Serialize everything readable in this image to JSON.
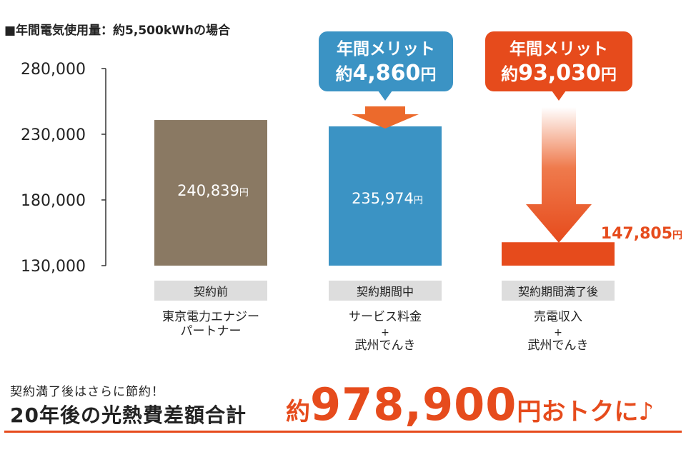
{
  "chart_data": {
    "type": "bar",
    "title": "■年間電気使用量：約5,500kWhの場合",
    "ylim": [
      130000,
      280000
    ],
    "yticks": [
      "280,000",
      "230,000",
      "180,000",
      "130,000"
    ],
    "ytick_values": [
      280000,
      230000,
      180000,
      130000
    ],
    "grid": false,
    "categories": [
      {
        "phase": "契約前",
        "name_lines": [
          "東京電力エナジー",
          "パートナー"
        ]
      },
      {
        "phase": "契約期間中",
        "name_lines": [
          "サービス料金",
          "+",
          "武州でんき"
        ]
      },
      {
        "phase": "契約期間満了後",
        "name_lines": [
          "売電収入",
          "+",
          "武州でんき"
        ]
      }
    ],
    "values": [
      240839,
      235974,
      147805
    ],
    "value_labels": [
      "240,839",
      "235,974",
      "147,805"
    ],
    "unit": "円",
    "colors": [
      "#8a7963",
      "#3b93c4",
      "#e64b1c"
    ],
    "phase_badge_color": "#dddddd",
    "callouts": [
      {
        "bar": 1,
        "line1": "年間メリット",
        "prefix": "約",
        "amount": "4,860",
        "unit": "円",
        "color": "#3b93c4"
      },
      {
        "bar": 2,
        "line1": "年間メリット",
        "prefix": "約",
        "amount": "93,030",
        "unit": "円",
        "color": "#e64b1c"
      }
    ]
  },
  "footer": {
    "note": "契約満了後はさらに節約！",
    "headline": "20年後の光熱費差額合計",
    "savings_prefix": "約",
    "savings_amount": "978,900",
    "savings_suffix": "円おトクに♪",
    "accent": "#e64b1c"
  }
}
